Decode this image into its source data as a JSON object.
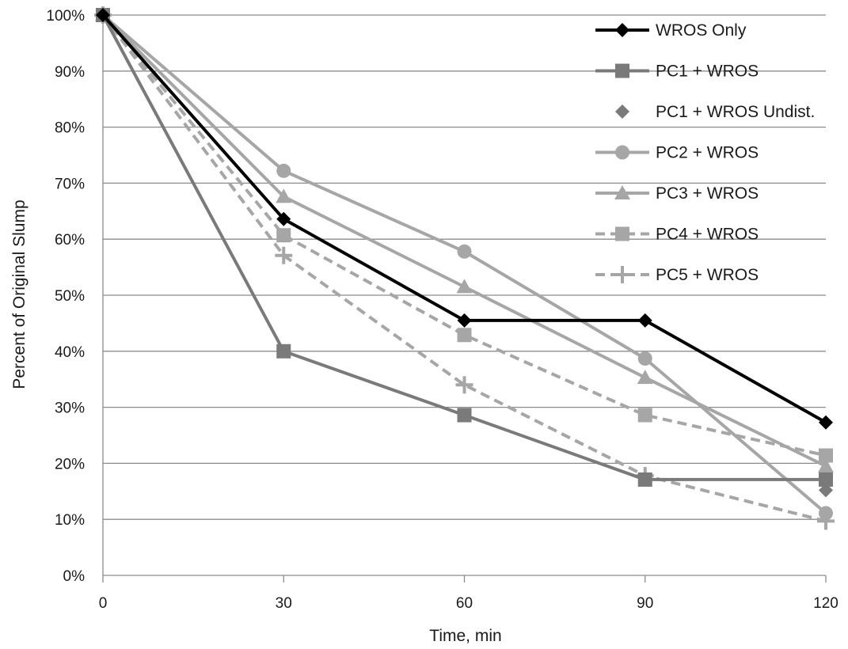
{
  "chart_data": {
    "type": "line",
    "xlabel": "Time, min",
    "ylabel": "Percent of Original Slump",
    "x": [
      0,
      30,
      60,
      90,
      120
    ],
    "xlim": [
      0,
      120
    ],
    "ylim": [
      0,
      100
    ],
    "yticks": [
      "0%",
      "10%",
      "20%",
      "30%",
      "40%",
      "50%",
      "60%",
      "70%",
      "80%",
      "90%",
      "100%"
    ],
    "xticks": [
      "0",
      "30",
      "60",
      "90",
      "120"
    ],
    "grid": "horizontal",
    "legend_position": "top-right",
    "series": [
      {
        "name": "WROS Only",
        "x": [
          0,
          30,
          60,
          90,
          120
        ],
        "values": [
          100,
          63.6,
          45.5,
          45.5,
          27.3
        ],
        "color": "#000000",
        "marker": "diamond",
        "dash": "solid"
      },
      {
        "name": "PC1 + WROS",
        "x": [
          0,
          30,
          60,
          90,
          120
        ],
        "values": [
          100,
          40,
          28.6,
          17.1,
          17.1
        ],
        "color": "#7a7a7a",
        "marker": "square",
        "dash": "solid"
      },
      {
        "name": "PC1 + WROS Undist.",
        "x": [
          120
        ],
        "values": [
          15.2
        ],
        "color": "#7a7a7a",
        "marker": "diamond",
        "dash": "none"
      },
      {
        "name": "PC2 + WROS",
        "x": [
          0,
          30,
          60,
          90,
          120
        ],
        "values": [
          100,
          72.2,
          57.8,
          38.7,
          11.1
        ],
        "color": "#a6a6a6",
        "marker": "circle",
        "dash": "solid"
      },
      {
        "name": "PC3 + WROS",
        "x": [
          0,
          30,
          60,
          90,
          120
        ],
        "values": [
          100,
          67.6,
          51.5,
          35.3,
          19.5
        ],
        "color": "#a6a6a6",
        "marker": "triangle",
        "dash": "solid"
      },
      {
        "name": "PC4 + WROS",
        "x": [
          0,
          30,
          60,
          90,
          120
        ],
        "values": [
          100,
          60.7,
          42.9,
          28.6,
          21.4
        ],
        "color": "#a6a6a6",
        "marker": "square",
        "dash": "dashed"
      },
      {
        "name": "PC5 + WROS",
        "x": [
          0,
          30,
          60,
          90,
          120
        ],
        "values": [
          100,
          57.1,
          34.0,
          17.8,
          9.7
        ],
        "color": "#a6a6a6",
        "marker": "plus",
        "dash": "dashed"
      }
    ]
  }
}
